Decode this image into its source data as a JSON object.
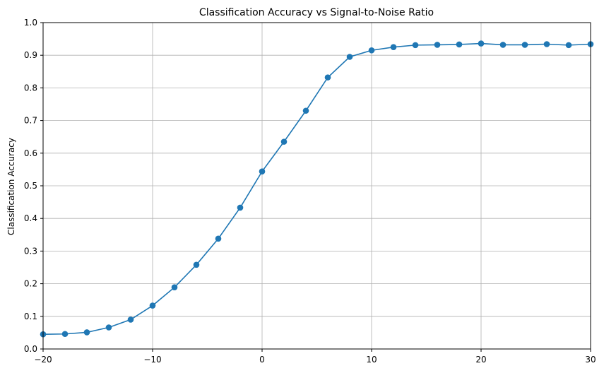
{
  "chart_data": {
    "type": "line",
    "title": "Classification Accuracy vs Signal-to-Noise Ratio",
    "xlabel": "",
    "ylabel": "Classification Accuracy",
    "xlim": [
      -20,
      30
    ],
    "ylim": [
      0.0,
      1.0
    ],
    "grid": true,
    "x_ticks": [
      -20,
      -10,
      0,
      10,
      20,
      30
    ],
    "x_tick_labels": [
      "−20",
      "−10",
      "0",
      "10",
      "20",
      "30"
    ],
    "y_ticks": [
      0.0,
      0.1,
      0.2,
      0.3,
      0.4,
      0.5,
      0.6,
      0.7,
      0.8,
      0.9,
      1.0
    ],
    "y_tick_labels": [
      "0.0",
      "0.1",
      "0.2",
      "0.3",
      "0.4",
      "0.5",
      "0.6",
      "0.7",
      "0.8",
      "0.9",
      "1.0"
    ],
    "series": [
      {
        "color": "#1f77b4",
        "marker": "circle",
        "x": [
          -20,
          -18,
          -16,
          -14,
          -12,
          -10,
          -8,
          -6,
          -4,
          -2,
          0,
          2,
          4,
          6,
          8,
          10,
          12,
          14,
          16,
          18,
          20,
          22,
          24,
          26,
          28,
          30
        ],
        "y": [
          0.045,
          0.046,
          0.051,
          0.066,
          0.09,
          0.133,
          0.189,
          0.258,
          0.338,
          0.433,
          0.544,
          0.635,
          0.73,
          0.832,
          0.895,
          0.915,
          0.925,
          0.931,
          0.932,
          0.933,
          0.936,
          0.932,
          0.932,
          0.934,
          0.931,
          0.934
        ]
      }
    ]
  }
}
